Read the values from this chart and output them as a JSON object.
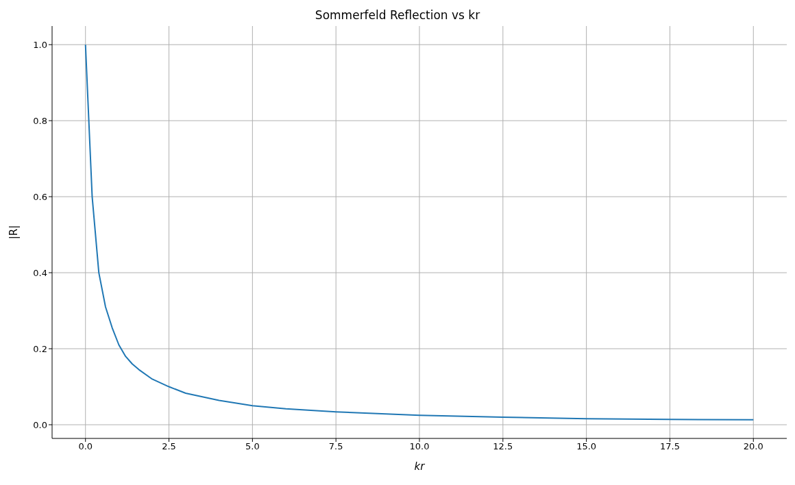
{
  "chart_data": {
    "type": "line",
    "title": "Sommerfeld Reflection vs kr",
    "xlabel": "kr",
    "ylabel": "|R|",
    "x": [
      0,
      0.2,
      0.4,
      0.6,
      0.8,
      1.0,
      1.2,
      1.4,
      1.6,
      2.0,
      2.5,
      3,
      4,
      5,
      6,
      7.5,
      10,
      12.5,
      15,
      17.5,
      20
    ],
    "series": [
      {
        "color": "#1f77b4",
        "values": [
          1.0,
          0.6,
          0.4,
          0.31,
          0.255,
          0.21,
          0.18,
          0.16,
          0.145,
          0.12,
          0.1,
          0.083,
          0.064,
          0.05,
          0.042,
          0.034,
          0.025,
          0.02,
          0.016,
          0.014,
          0.013
        ]
      }
    ],
    "xlim": [
      -1,
      21
    ],
    "ylim": [
      -0.036,
      1.049
    ],
    "xticks": [
      {
        "value": 0,
        "label": "0.0"
      },
      {
        "value": 2.5,
        "label": "2.5"
      },
      {
        "value": 5,
        "label": "5.0"
      },
      {
        "value": 7.5,
        "label": "7.5"
      },
      {
        "value": 10,
        "label": "10.0"
      },
      {
        "value": 12.5,
        "label": "12.5"
      },
      {
        "value": 15,
        "label": "15.0"
      },
      {
        "value": 17.5,
        "label": "17.5"
      },
      {
        "value": 20,
        "label": "20.0"
      }
    ],
    "yticks": [
      {
        "value": 0,
        "label": "0.0"
      },
      {
        "value": 0.2,
        "label": "0.2"
      },
      {
        "value": 0.4,
        "label": "0.4"
      },
      {
        "value": 0.6,
        "label": "0.6"
      },
      {
        "value": 0.8,
        "label": "0.8"
      },
      {
        "value": 1,
        "label": "1.0"
      }
    ],
    "grid": true,
    "legend": false,
    "marker": "none",
    "line_style": "solid"
  }
}
